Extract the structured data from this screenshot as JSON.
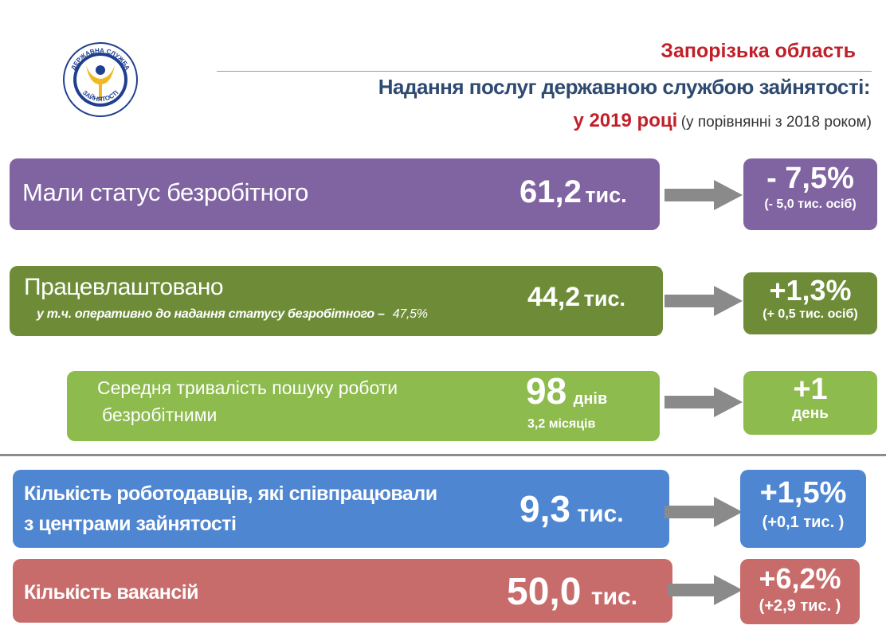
{
  "header": {
    "region": "Запорізька область",
    "title": "Надання послуг державною службою зайнятості:",
    "year": "у 2019 році",
    "comparison": "(у порівнянні з 2018 роком)"
  },
  "logo": {
    "top_text": "ДЕРЖАВНА СЛУЖБА",
    "bottom_text": "ЗАЙНЯТОСТІ",
    "icon": "employment-service-emblem",
    "colors": {
      "ring": "#1f3f8f",
      "figure": "#f2b823"
    }
  },
  "rows": [
    {
      "label": "Мали статус безробітного",
      "value": "61,2",
      "unit": "тис.",
      "change": "- 7,5%",
      "change_detail": "(- 5,0 тис. осіб)",
      "color": "#8064a2"
    },
    {
      "label": "Працевлаштовано",
      "sublabel": "у т.ч. оперативно до надання статусу безробітного –",
      "sublabel_value": "47,5%",
      "value": "44,2",
      "unit": "тис.",
      "change": "+1,3%",
      "change_detail": "(+ 0,5 тис. осіб)",
      "color": "#6e8c38"
    },
    {
      "label_line1": "Середня тривалість пошуку роботи",
      "label_line2": "безробітними",
      "value": "98",
      "unit": "днів",
      "value_extra": "3,2 місяців",
      "change": "+1",
      "change_detail": "день",
      "color": "#8dbb4e"
    },
    {
      "label_line1": "Кількість роботодавців, які співпрацювали",
      "label_line2": "з центрами зайнятості",
      "value": "9,3",
      "unit": "тис.",
      "change": "+1,5%",
      "change_detail": "(+0,1 тис. )",
      "color": "#4f86d1"
    },
    {
      "label": "Кількість вакансій",
      "value": "50,0",
      "unit": "тис.",
      "change": "+6,2%",
      "change_detail": "(+2,9 тис. )",
      "color": "#c86b6b"
    }
  ],
  "arrow_color": "#8a8a8a"
}
